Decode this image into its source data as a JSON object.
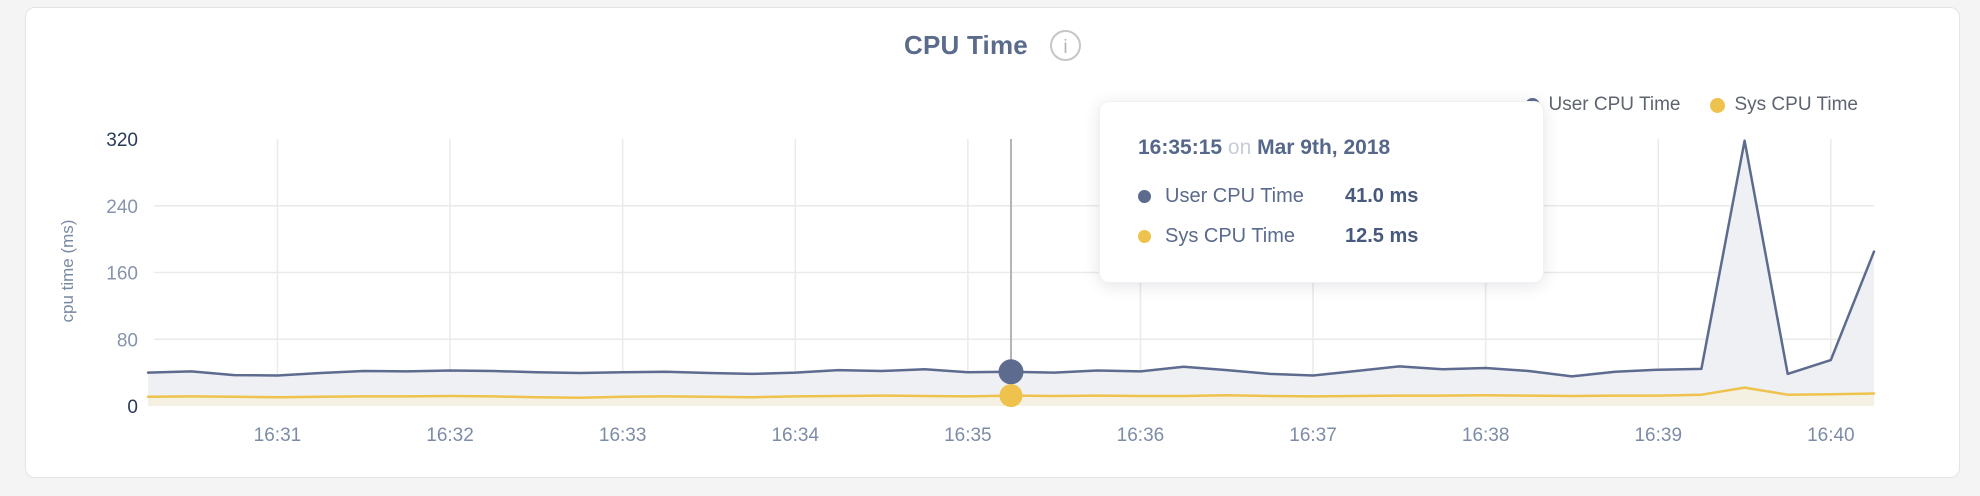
{
  "header": {
    "title": "CPU Time",
    "info_icon_glyph": "i"
  },
  "colors": {
    "title": "#5a6b8c",
    "page_bg": "#f4f4f5",
    "card_bg": "#ffffff",
    "grid": "#eaeaea",
    "crosshair": "#b4b4b4",
    "axis_label": "#7d8ca6",
    "axis_label_strong": "#2a3a5a"
  },
  "chart_data": {
    "type": "area",
    "title": "CPU Time",
    "xlabel": "",
    "ylabel": "cpu time (ms)",
    "y_ticks": [
      0,
      80,
      160,
      240,
      320
    ],
    "ylim": [
      0,
      320
    ],
    "grid": true,
    "legend_position": "top-right",
    "n_points": 41,
    "x_ticks": [
      {
        "label": "16:31",
        "index": 3
      },
      {
        "label": "16:32",
        "index": 7
      },
      {
        "label": "16:33",
        "index": 11
      },
      {
        "label": "16:34",
        "index": 15
      },
      {
        "label": "16:35",
        "index": 19
      },
      {
        "label": "16:36",
        "index": 23
      },
      {
        "label": "16:37",
        "index": 27
      },
      {
        "label": "16:38",
        "index": 31
      },
      {
        "label": "16:39",
        "index": 35
      },
      {
        "label": "16:40",
        "index": 39
      }
    ],
    "series": [
      {
        "name": "User CPU Time",
        "color": "#5d6b8e",
        "fill": "#eef0f4",
        "values": [
          40,
          41.5,
          37,
          36.5,
          39.5,
          42,
          41.5,
          42.5,
          42,
          40.5,
          39.5,
          40.5,
          41,
          39.5,
          38.5,
          40,
          43,
          42,
          44,
          40.5,
          41,
          40,
          42.5,
          41.5,
          47,
          43,
          38.5,
          36.5,
          42,
          47.5,
          44,
          45.5,
          42,
          35.5,
          41,
          43.5,
          44.5,
          318,
          38.5,
          55,
          185
        ]
      },
      {
        "name": "Sys CPU Time",
        "color": "#eec24d",
        "fill": "#f5f1e2",
        "values": [
          11,
          11.5,
          11,
          10.5,
          11,
          11.5,
          11.5,
          12,
          11.5,
          10.5,
          10,
          11,
          11.5,
          11,
          10.5,
          11.5,
          12,
          12.5,
          12,
          11.5,
          12.5,
          12,
          12.5,
          12,
          12,
          13,
          12,
          11.5,
          12,
          12.5,
          12.5,
          13,
          12.5,
          12,
          12.5,
          12.5,
          13.5,
          22,
          13.5,
          14,
          15
        ]
      }
    ],
    "hover": {
      "index": 20,
      "time": "16:35:15",
      "conjunction": "on",
      "date": "Mar 9th, 2018",
      "rows": [
        {
          "label": "User CPU Time",
          "value": "41.0 ms",
          "color": "#5d6b8e"
        },
        {
          "label": "Sys CPU Time",
          "value": "12.5 ms",
          "color": "#eec24d"
        }
      ]
    }
  }
}
